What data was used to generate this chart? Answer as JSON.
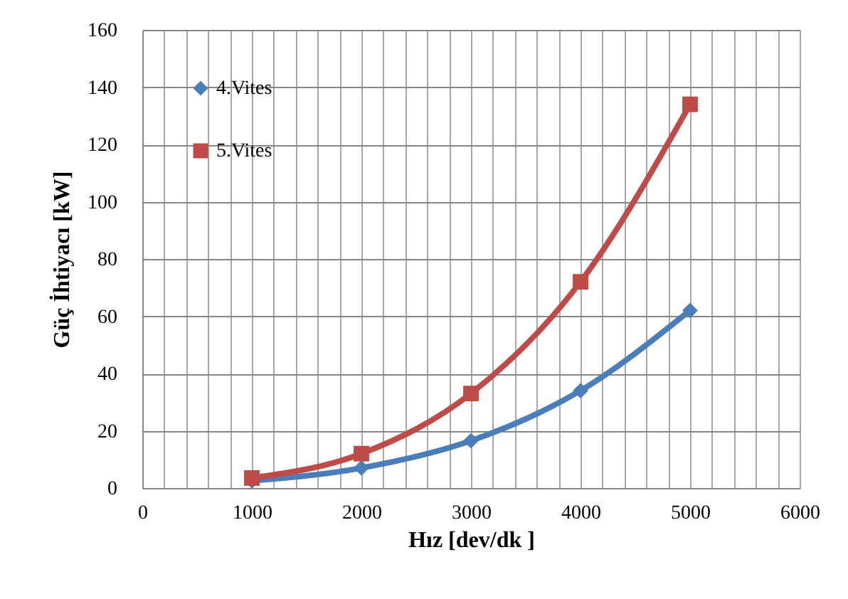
{
  "chart_data": {
    "type": "line",
    "xlabel": "Hız [dev/dk ]",
    "ylabel": "Güç İhtiyacı  [kW]",
    "x": [
      1000,
      2000,
      3000,
      4000,
      5000
    ],
    "series": [
      {
        "name": "4.Vites",
        "color": "#4a7ebb",
        "marker": "diamond",
        "values": [
          2.5,
          7,
          16.5,
          34,
          62
        ]
      },
      {
        "name": "5.Vites",
        "color": "#be4b48",
        "marker": "square",
        "values": [
          3.5,
          12,
          33,
          72,
          134
        ]
      }
    ],
    "xlim": [
      0,
      6000
    ],
    "xticks": [
      0,
      {
        "value": 200,
        "label": null
      },
      {
        "value": 400,
        "label": null
      },
      {
        "value": 600,
        "label": null
      },
      {
        "value": 800,
        "label": null
      },
      1000,
      {
        "value": 1200,
        "label": null
      },
      {
        "value": 1400,
        "label": null
      },
      {
        "value": 1600,
        "label": null
      },
      {
        "value": 1800,
        "label": null
      },
      2000,
      {
        "value": 2200,
        "label": null
      },
      {
        "value": 2400,
        "label": null
      },
      {
        "value": 2600,
        "label": null
      },
      {
        "value": 2800,
        "label": null
      },
      3000,
      {
        "value": 3200,
        "label": null
      },
      {
        "value": 3400,
        "label": null
      },
      {
        "value": 3600,
        "label": null
      },
      {
        "value": 3800,
        "label": null
      },
      4000,
      {
        "value": 4200,
        "label": null
      },
      {
        "value": 4400,
        "label": null
      },
      {
        "value": 4600,
        "label": null
      },
      {
        "value": 4800,
        "label": null
      },
      5000,
      {
        "value": 5200,
        "label": null
      },
      {
        "value": 5400,
        "label": null
      },
      {
        "value": 5600,
        "label": null
      },
      {
        "value": 5800,
        "label": null
      },
      6000
    ],
    "ylim": [
      0,
      160
    ],
    "yticks": [
      0,
      20,
      40,
      60,
      80,
      100,
      120,
      140,
      160
    ],
    "grid": true,
    "legend": "top left",
    "line_style": "solid"
  }
}
